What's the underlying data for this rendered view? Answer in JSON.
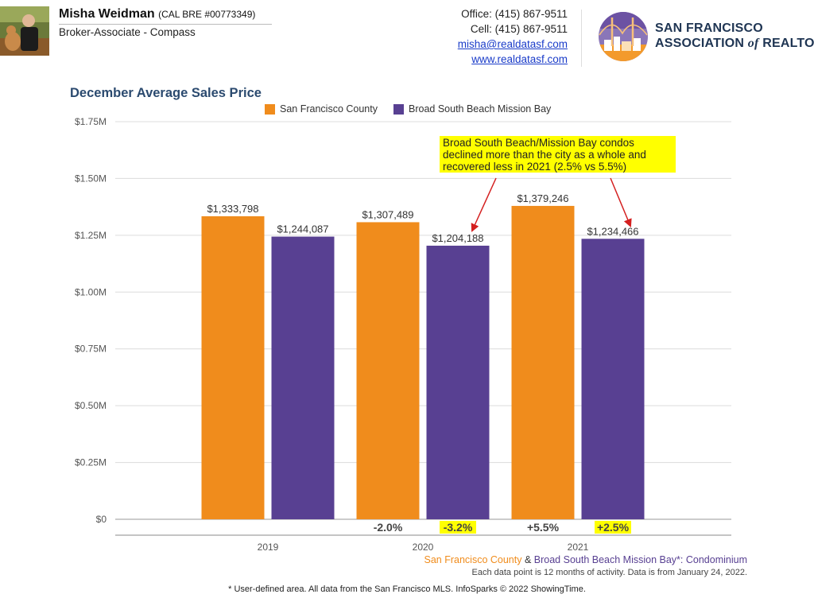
{
  "header": {
    "agent_name": "Misha Weidman",
    "agent_license": "(CAL BRE #00773349)",
    "agent_title": "Broker-Associate - Compass",
    "office": "Office: (415) 867-9511",
    "cell": "Cell: (415) 867-9511",
    "email": "misha@realdatasf.com",
    "website": "www.realdatasf.com",
    "logo_line1": "SAN FRANCISCO",
    "logo_line2_a": "ASSOCIATION",
    "logo_line2_b": "of",
    "logo_line2_c": "REALTORS",
    "logo_reg": "®"
  },
  "colors": {
    "sf_county": "#f08c1c",
    "mission_bay": "#584092",
    "title": "#2b4a6f",
    "highlight": "#ffff00",
    "arrow": "#d42020"
  },
  "chart_data": {
    "type": "bar",
    "title": "December Average Sales Price",
    "categories": [
      "2019",
      "2020",
      "2021"
    ],
    "series": [
      {
        "name": "San Francisco County",
        "values": [
          1333798,
          1307489,
          1379246
        ],
        "labels": [
          "$1,333,798",
          "$1,307,489",
          "$1,379,246"
        ]
      },
      {
        "name": "Broad South Beach Mission Bay",
        "values": [
          1244087,
          1204188,
          1234466
        ],
        "labels": [
          "$1,244,087",
          "$1,204,188",
          "$1,234,466"
        ]
      }
    ],
    "ylim": [
      0,
      1750000
    ],
    "yticks": [
      0,
      250000,
      500000,
      750000,
      1000000,
      1250000,
      1500000,
      1750000
    ],
    "ytick_labels": [
      "$0",
      "$0.25M",
      "$0.50M",
      "$0.75M",
      "$1.00M",
      "$1.25M",
      "$1.50M",
      "$1.75M"
    ],
    "grid": true,
    "legend_position": "top-center",
    "changes": [
      {
        "category": "2020",
        "sf": "-2.0%",
        "mb": "-3.2%"
      },
      {
        "category": "2021",
        "sf": "+5.5%",
        "mb": "+2.5%"
      }
    ],
    "annotation": {
      "lines": [
        "Broad South Beach/Mission Bay condos",
        "declined more than the city as a whole and",
        "recovered less in 2021 (2.5% vs 5.5%)"
      ]
    }
  },
  "footer": {
    "series_a": "San Francisco County",
    "amp": " & ",
    "series_b": "Broad South Beach Mission Bay*",
    "suffix": ": Condominium",
    "note": "Each data point is 12 months of activity. Data is from January 24, 2022.",
    "disclaimer": "* User-defined area. All data from the San Francisco MLS. InfoSparks © 2022 ShowingTime."
  }
}
